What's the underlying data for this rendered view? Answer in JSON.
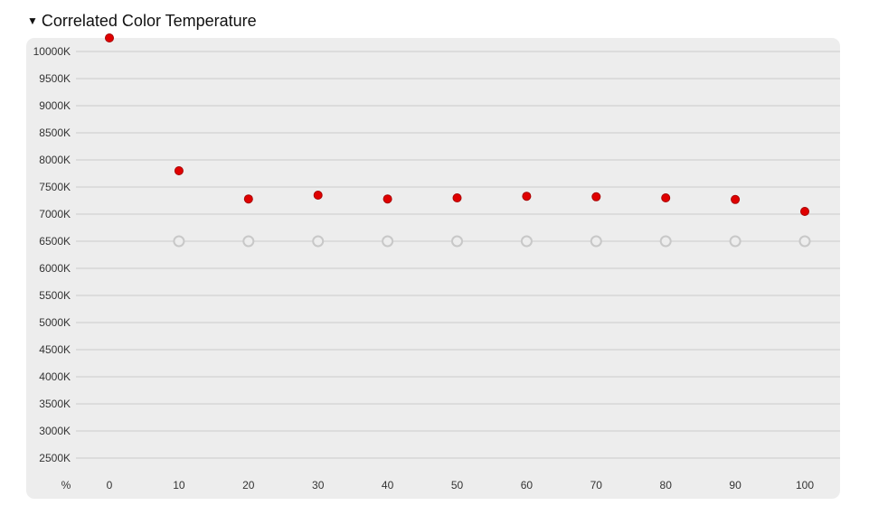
{
  "section": {
    "toggle_icon": "▼",
    "title": "Correlated Color Temperature"
  },
  "chart_data": {
    "type": "scatter",
    "title": "Correlated Color Temperature",
    "xlabel": "%",
    "ylabel": "",
    "x": [
      0,
      10,
      20,
      30,
      40,
      50,
      60,
      70,
      80,
      90,
      100
    ],
    "x_tick_labels": [
      "0",
      "10",
      "20",
      "30",
      "40",
      "50",
      "60",
      "70",
      "80",
      "90",
      "100"
    ],
    "y_ticks": [
      10000,
      9500,
      9000,
      8500,
      8000,
      7500,
      7000,
      6500,
      6000,
      5500,
      5000,
      4500,
      4000,
      3500,
      3000,
      2500
    ],
    "y_tick_labels": [
      "10000K",
      "9500K",
      "9000K",
      "8500K",
      "8000K",
      "7500K",
      "7000K",
      "6500K",
      "6000K",
      "5500K",
      "5000K",
      "4500K",
      "4000K",
      "3500K",
      "3000K",
      "2500K"
    ],
    "ylim": [
      2500,
      10000
    ],
    "grid": true,
    "series": [
      {
        "values": [
          10250,
          7800,
          7280,
          7350,
          7280,
          7300,
          7330,
          7320,
          7300,
          7270,
          7050
        ],
        "color": "#e00000",
        "marker": "filled-circle"
      },
      {
        "values": [
          null,
          6500,
          6500,
          6500,
          6500,
          6500,
          6500,
          6500,
          6500,
          6500,
          6500
        ],
        "color": "#c8c8c8",
        "marker": "hollow-circle"
      }
    ],
    "colors": {
      "panel_background": "#ededed",
      "grid": "#d6d6d6",
      "measured_fill": "#e00000",
      "measured_stroke": "#a80000",
      "target_stroke": "#c8c8c8"
    }
  }
}
